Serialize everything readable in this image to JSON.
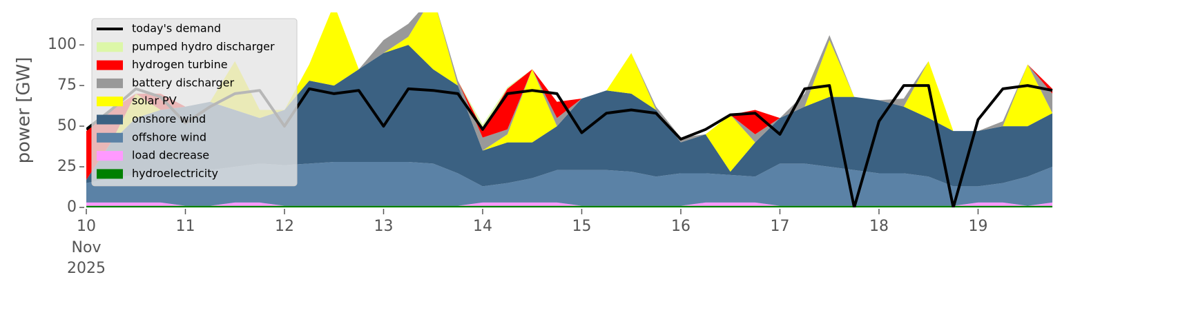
{
  "chart_data": {
    "type": "stacked-area",
    "y_label": "power [GW]",
    "x": [
      0,
      6,
      12,
      18,
      24,
      30,
      36,
      42,
      48,
      54,
      60,
      66,
      72,
      78,
      84,
      90,
      96,
      102,
      108,
      114,
      120,
      126,
      132,
      138,
      144,
      150,
      156,
      162,
      168,
      174,
      180,
      186,
      192,
      198,
      204,
      210,
      216,
      222,
      228,
      234
    ],
    "xlim": [
      0,
      238
    ],
    "xticks": [
      {
        "value": 0,
        "label": "10"
      },
      {
        "value": 24,
        "label": "11"
      },
      {
        "value": 48,
        "label": "12"
      },
      {
        "value": 72,
        "label": "13"
      },
      {
        "value": 96,
        "label": "14"
      },
      {
        "value": 120,
        "label": "15"
      },
      {
        "value": 144,
        "label": "16"
      },
      {
        "value": 168,
        "label": "17"
      },
      {
        "value": 192,
        "label": "18"
      },
      {
        "value": 216,
        "label": "19"
      }
    ],
    "month_label": "Nov",
    "year_label": "2025",
    "ylim": [
      0,
      120
    ],
    "yticks": [
      0,
      25,
      50,
      75,
      100
    ],
    "legend": "upper left",
    "series": [
      {
        "name": "hydroelectricity",
        "color": "#008000",
        "values": [
          1,
          1,
          1,
          1,
          1,
          1,
          1,
          1,
          1,
          1,
          1,
          1,
          1,
          1,
          1,
          1,
          1,
          1,
          1,
          1,
          1,
          1,
          1,
          1,
          1,
          1,
          1,
          1,
          1,
          1,
          1,
          1,
          1,
          1,
          1,
          1,
          1,
          1,
          1,
          1
        ]
      },
      {
        "name": "load decrease",
        "color": "#ff99ff",
        "values": [
          2,
          2,
          2,
          2,
          0,
          0,
          2,
          2,
          0,
          0,
          0,
          0,
          0,
          0,
          0,
          0,
          2,
          2,
          2,
          2,
          0,
          0,
          0,
          0,
          0,
          2,
          2,
          2,
          0,
          0,
          0,
          0,
          0,
          0,
          0,
          0,
          2,
          2,
          0,
          2
        ]
      },
      {
        "name": "offshore wind",
        "color": "#5b82a6",
        "values": [
          12,
          15,
          17,
          18,
          20,
          22,
          22,
          24,
          25,
          26,
          27,
          27,
          27,
          27,
          26,
          20,
          10,
          12,
          15,
          20,
          22,
          22,
          21,
          18,
          20,
          18,
          17,
          16,
          26,
          26,
          24,
          22,
          20,
          20,
          18,
          12,
          10,
          12,
          18,
          22
        ]
      },
      {
        "name": "onshore wind",
        "color": "#3b6182",
        "values": [
          2,
          22,
          35,
          39,
          41,
          42,
          35,
          28,
          34,
          51,
          47,
          57,
          67,
          72,
          58,
          54,
          22,
          25,
          22,
          27,
          44,
          49,
          48,
          41,
          19,
          24,
          2,
          21,
          28,
          35,
          43,
          45,
          45,
          41,
          36,
          34,
          34,
          35,
          31,
          33
        ]
      },
      {
        "name": "solar PV",
        "color": "#ffff00",
        "values": [
          0,
          0,
          15,
          0,
          0,
          0,
          30,
          5,
          0,
          10,
          50,
          0,
          0,
          5,
          45,
          0,
          0,
          5,
          45,
          0,
          0,
          0,
          25,
          0,
          0,
          0,
          35,
          0,
          0,
          0,
          35,
          0,
          0,
          0,
          35,
          0,
          0,
          0,
          38,
          0
        ]
      },
      {
        "name": "battery discharger",
        "color": "#999999",
        "values": [
          0,
          0,
          0,
          0,
          0,
          0,
          0,
          0,
          0,
          0,
          0,
          0,
          8,
          8,
          0,
          3,
          8,
          3,
          0,
          5,
          0,
          0,
          0,
          2,
          3,
          0,
          0,
          5,
          0,
          8,
          3,
          0,
          0,
          5,
          0,
          0,
          0,
          3,
          0,
          12
        ]
      },
      {
        "name": "hydrogen turbine",
        "color": "#ff0000",
        "values": [
          30,
          20,
          0,
          10,
          0,
          0,
          0,
          0,
          0,
          0,
          0,
          0,
          0,
          0,
          0,
          0,
          5,
          25,
          0,
          10,
          0,
          0,
          0,
          0,
          0,
          0,
          0,
          15,
          0,
          0,
          0,
          0,
          0,
          0,
          0,
          0,
          0,
          0,
          0,
          3
        ]
      },
      {
        "name": "pumped hydro discharger",
        "color": "#dcf7a8",
        "values": [
          0,
          0,
          0,
          0,
          0,
          0,
          0,
          0,
          0,
          0,
          0,
          0,
          0,
          0,
          0,
          0,
          3,
          1,
          0,
          0,
          0,
          0,
          0,
          0,
          0,
          0,
          0,
          0,
          0,
          0,
          0,
          0,
          0,
          0,
          0,
          0,
          0,
          0,
          0,
          0
        ]
      }
    ],
    "lines": [
      {
        "name": "today's demand",
        "color": "#000000",
        "values": [
          48,
          60,
          73,
          68,
          52,
          62,
          70,
          72,
          50,
          73,
          70,
          72,
          50,
          73,
          72,
          70,
          48,
          70,
          72,
          70,
          46,
          58,
          60,
          58,
          42,
          48,
          57,
          58,
          45,
          73,
          75,
          0,
          53,
          75,
          75,
          0,
          54,
          73,
          75,
          72
        ]
      }
    ]
  }
}
